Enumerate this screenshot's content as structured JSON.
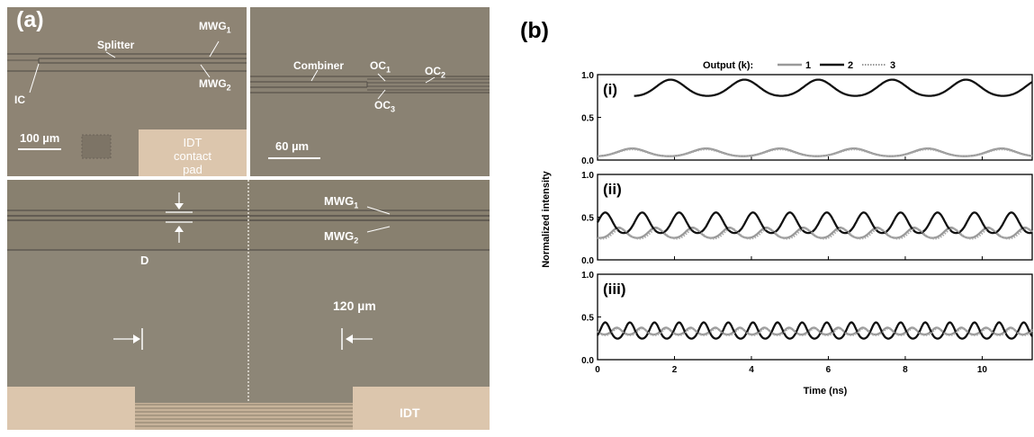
{
  "panel_a": {
    "label": "(a)",
    "top_left": {
      "splitter": "Splitter",
      "mwg1": "MWG",
      "mwg1_sub": "1",
      "mwg2": "MWG",
      "mwg2_sub": "2",
      "ic": "IC",
      "scale": "100 µm",
      "pad_line1": "IDT",
      "pad_line2": "contact",
      "pad_line3": "pad"
    },
    "top_right": {
      "combiner": "Combiner",
      "oc1": "OC",
      "oc1_sub": "1",
      "oc2": "OC",
      "oc2_sub": "2",
      "oc3": "OC",
      "oc3_sub": "3",
      "scale": "60 µm"
    },
    "bottom": {
      "d": "D",
      "mwg1": "MWG",
      "mwg1_sub": "1",
      "mwg2": "MWG",
      "mwg2_sub": "2",
      "period": "120 µm",
      "idt": "IDT"
    },
    "colors": {
      "substrate": "#8c8374",
      "pad": "#dcc6ad",
      "waveguide": "#55504a"
    }
  },
  "panel_b": {
    "label": "(b)",
    "legend_title": "Output (k):",
    "colors": {
      "k1": "#999999",
      "k2": "#111111",
      "k3": "#aaaaaa"
    }
  },
  "chart_data": {
    "type": "line",
    "xlabel": "Time (ns)",
    "ylabel": "Normalized intensity",
    "xlim": [
      0,
      11.3
    ],
    "x_ticks": [
      0,
      2,
      4,
      6,
      8,
      10
    ],
    "y_ticks": [
      0.0,
      0.5,
      1.0
    ],
    "y_tick_labels": [
      "0.0",
      "0.5",
      "1.0"
    ],
    "legend": [
      "1",
      "2",
      "3"
    ],
    "legend_placement": "top-center",
    "subplots": [
      {
        "label": "(i)",
        "ylim": [
          0,
          1.0
        ],
        "series": [
          {
            "name": "1",
            "style": "solid-gray",
            "x_start": 0.0,
            "x_end": 11.3,
            "mean": 0.085,
            "amplitude": 0.045,
            "period": 1.92,
            "peak_at": 0.9
          },
          {
            "name": "2",
            "style": "solid-black",
            "x_start": 0.95,
            "x_end": 11.3,
            "mean": 0.835,
            "amplitude": 0.095,
            "period": 1.92,
            "peak_at": 1.9
          },
          {
            "name": "3",
            "style": "dotted-gray",
            "x_start": 0.0,
            "x_end": 11.3,
            "mean": 0.08,
            "amplitude": 0.04,
            "period": 1.92,
            "peak_at": 0.9
          }
        ]
      },
      {
        "label": "(ii)",
        "ylim": [
          0,
          1.0
        ],
        "series": [
          {
            "name": "1",
            "style": "solid-gray",
            "x_start": 0.0,
            "x_end": 11.3,
            "mean": 0.31,
            "amplitude": 0.06,
            "period": 0.96,
            "peak_at": 0.55
          },
          {
            "name": "2",
            "style": "solid-black",
            "x_start": 0.0,
            "x_end": 11.3,
            "mean": 0.42,
            "amplitude": 0.12,
            "period": 0.96,
            "peak_at": 0.2
          },
          {
            "name": "3",
            "style": "dotted-gray",
            "x_start": 0.0,
            "x_end": 11.3,
            "mean": 0.3,
            "amplitude": 0.06,
            "period": 0.96,
            "peak_at": 0.6
          }
        ]
      },
      {
        "label": "(iii)",
        "ylim": [
          0,
          1.0
        ],
        "series": [
          {
            "name": "1",
            "style": "solid-gray",
            "x_start": 0.0,
            "x_end": 11.3,
            "mean": 0.33,
            "amplitude": 0.04,
            "period": 0.64,
            "peak_at": 0.5
          },
          {
            "name": "2",
            "style": "solid-black",
            "x_start": 0.0,
            "x_end": 11.3,
            "mean": 0.33,
            "amplitude": 0.095,
            "period": 0.64,
            "peak_at": 0.2
          },
          {
            "name": "3",
            "style": "dotted-gray",
            "x_start": 0.0,
            "x_end": 11.3,
            "mean": 0.32,
            "amplitude": 0.04,
            "period": 0.64,
            "peak_at": 0.52
          }
        ]
      }
    ]
  }
}
